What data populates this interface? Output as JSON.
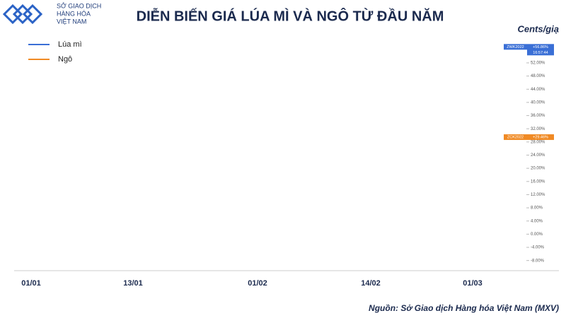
{
  "brand": [
    "SỞ GIAO DỊCH",
    "HÀNG HÓA",
    "VIỆT NAM"
  ],
  "chart_data": {
    "type": "line",
    "title": "DIỄN BIẾN GIÁ LÚA MÌ VÀ NGÔ TỪ ĐẦU NĂM",
    "unit": "Cents/giạ",
    "source": "Nguồn: Sở Giao dịch Hàng hóa Việt Nam (MXV)",
    "categories": [
      null,
      "01/01",
      null,
      null,
      null,
      null,
      null,
      null,
      null,
      null,
      "13/01",
      null,
      null,
      null,
      null,
      null,
      null,
      null,
      null,
      null,
      null,
      "01/02",
      null,
      null,
      null,
      null,
      null,
      null,
      null,
      null,
      null,
      "14/02",
      null,
      null,
      null,
      null,
      null,
      null,
      null,
      null,
      "01/03",
      null,
      null,
      null
    ],
    "series": [
      {
        "name": "Lúa mì",
        "color": "#3a6fd6",
        "tag": "ZWK2022",
        "change": "+56.86%",
        "time": "16:57:44",
        "values": [
          0,
          -1.7,
          -0.2,
          -1.3,
          -3.2,
          -1.7,
          -1.3,
          -0.2,
          -1.9,
          -3.2,
          -3.9,
          -0.4,
          3.2,
          2.4,
          1.3,
          3.6,
          6.0,
          3.0,
          0.9,
          1.9,
          -1.3,
          -0.2,
          -2.1,
          -2.6,
          -1.3,
          -0.4,
          0.9,
          1.7,
          0,
          3.4,
          4.3,
          1.7,
          1.7,
          4.3,
          4.3,
          10.5,
          13.5,
          21.2,
          11.4,
          21.2,
          27.9,
          37.8,
          47.4,
          56.86
        ]
      },
      {
        "name": "Ngô",
        "color": "#f08a24",
        "tag": "ZCK2022",
        "change": "+29.46%",
        "values": [
          0,
          -0.8,
          2.6,
          1.5,
          1.7,
          2.1,
          1.1,
          1.3,
          1.0,
          -1.0,
          0.4,
          1.0,
          2.6,
          3.0,
          3.6,
          4.3,
          4.9,
          4.5,
          5.6,
          5.4,
          7.3,
          5.6,
          6.9,
          4.9,
          4.1,
          4.5,
          7.1,
          6.6,
          9.0,
          8.2,
          9.6,
          10.3,
          7.5,
          9.0,
          9.4,
          10.1,
          14.0,
          15.4,
          17.2,
          11.2,
          16.2,
          22.3,
          22.1,
          29.46
        ]
      }
    ],
    "ylim": [
      -10,
      58
    ],
    "yticks": [
      {
        "value": -8,
        "label": "-8.00%"
      },
      {
        "value": -4,
        "label": "-4.00%"
      },
      {
        "value": 0,
        "label": "0.00%"
      },
      {
        "value": 4,
        "label": "4.00%"
      },
      {
        "value": 8,
        "label": "8.00%"
      },
      {
        "value": 12,
        "label": "12.00%"
      },
      {
        "value": 16,
        "label": "16.00%"
      },
      {
        "value": 20,
        "label": "20.00%"
      },
      {
        "value": 24,
        "label": "24.00%"
      },
      {
        "value": 28,
        "label": "28.00%"
      },
      {
        "value": 32,
        "label": "32.00%"
      },
      {
        "value": 36,
        "label": "36.00%"
      },
      {
        "value": 40,
        "label": "40.00%"
      },
      {
        "value": 44,
        "label": "44.00%"
      },
      {
        "value": 48,
        "label": "48.00%"
      },
      {
        "value": 52,
        "label": "52.00%"
      }
    ],
    "grid": false
  }
}
